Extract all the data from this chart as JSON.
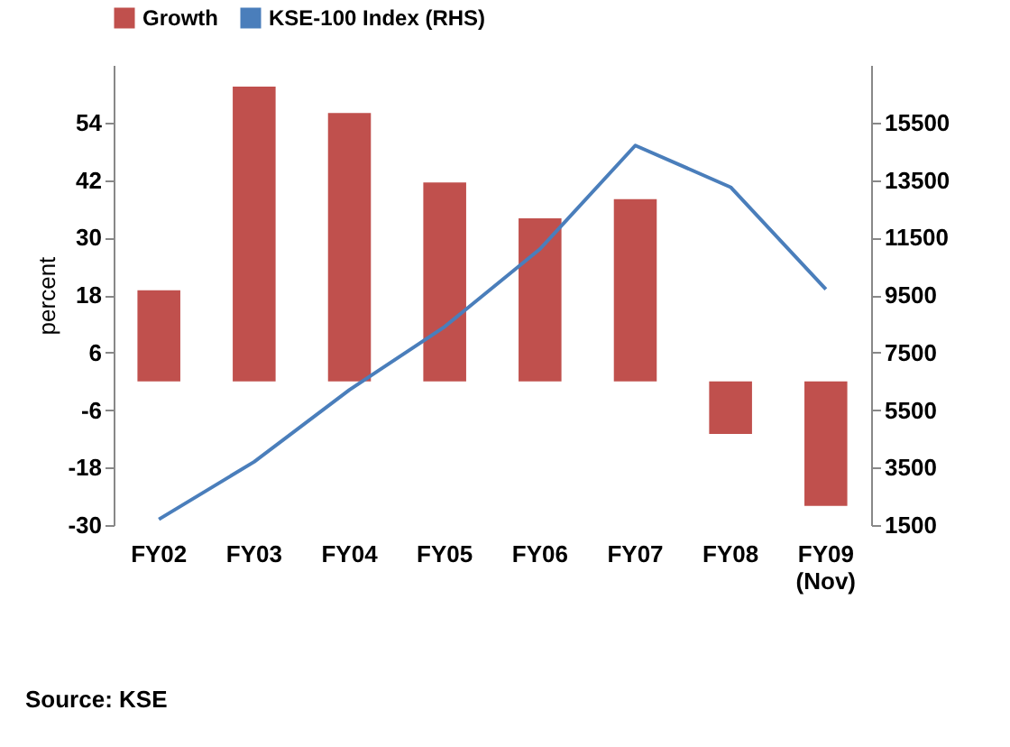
{
  "chart_data": {
    "type": "bar",
    "categories": [
      "FY02",
      "FY03",
      "FY04",
      "FY05",
      "FY06",
      "FY07",
      "FY08",
      "FY09 (Nov)"
    ],
    "ylabel": "percent",
    "series": [
      {
        "name": "Growth",
        "color": "#c0504d",
        "values": [
          19,
          61.5,
          56,
          41.5,
          34,
          38,
          -11,
          -26
        ]
      },
      {
        "name": "KSE-100 Index (RHS)",
        "type": "line",
        "axis": "y2",
        "color": "#4a7ebb",
        "values": [
          1700,
          3700,
          6200,
          8400,
          11100,
          14700,
          13250,
          9700
        ]
      }
    ],
    "ylim": [
      -30,
      66
    ],
    "yticks": [
      -30,
      -18,
      -6,
      6,
      18,
      30,
      42,
      54
    ],
    "y2lim": [
      1500,
      17500
    ],
    "y2ticks": [
      1500,
      3500,
      5500,
      7500,
      9500,
      11500,
      13500,
      15500
    ],
    "grid": false,
    "legend": "top",
    "annotations": [
      "Source: KSE"
    ]
  }
}
